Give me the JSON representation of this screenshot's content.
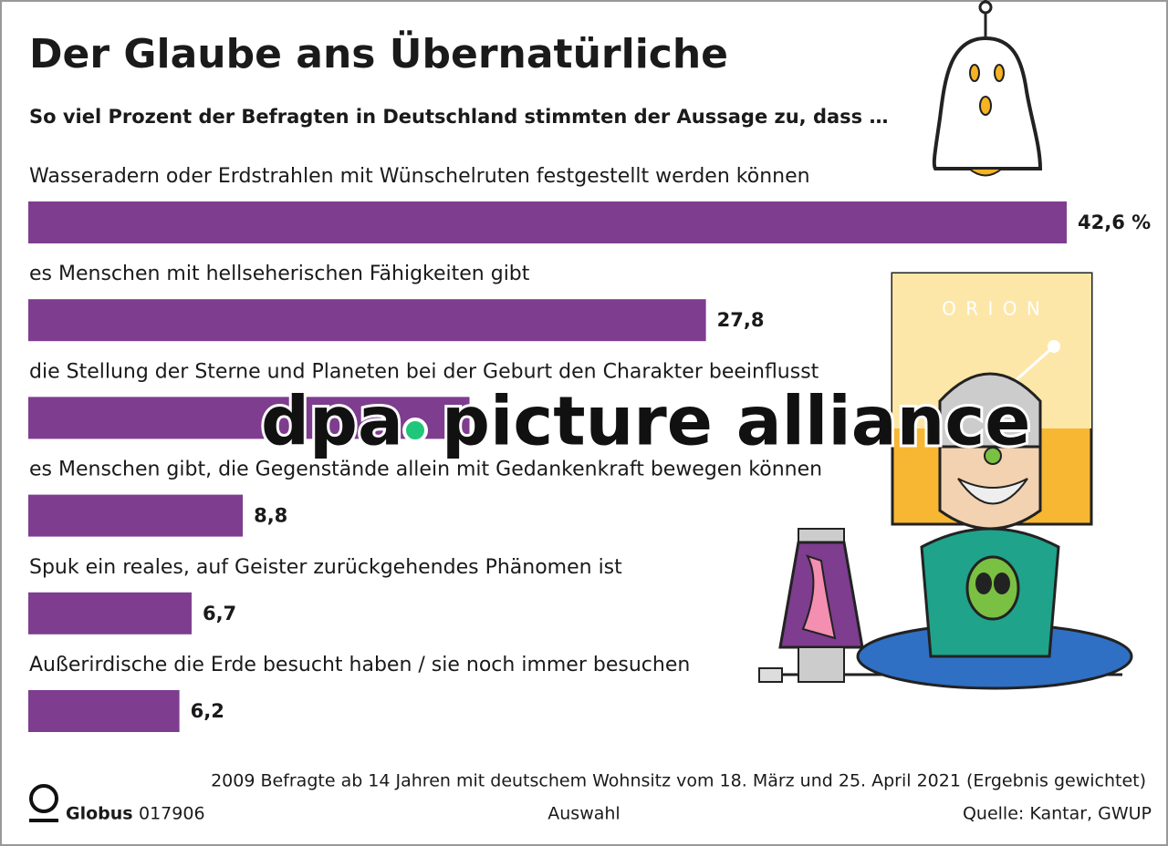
{
  "chart_data": {
    "type": "bar",
    "orientation": "horizontal",
    "title": "Der Glaube ans Übernatürliche",
    "subtitle": "So viel Prozent der Befragten in Deutschland stimmten der Aussage zu, dass …",
    "categories": [
      "Wasseradern oder Erdstrahlen mit Wünschelruten festgestellt werden können",
      "es Menschen mit hellseherischen Fähigkeiten gibt",
      "die Stellung der Sterne und Planeten bei der Geburt den Charakter beeinflusst",
      "es Menschen gibt, die Gegenstände allein mit Gedankenkraft bewegen können",
      "Spuk ein reales, auf Geister zurückgehendes Phänomen ist",
      "Außerirdische die Erde besucht haben / sie noch immer besuchen"
    ],
    "values": [
      42.6,
      27.8,
      18.1,
      8.8,
      6.7,
      6.2
    ],
    "value_labels": [
      "42,6 %",
      "27,8",
      null,
      "8,8",
      "6,7",
      "6,2"
    ],
    "color": "#7e3d8f",
    "note": "2009 Befragte ab 14 Jahren mit deutschem Wohnsitz vom 18. März und 25. April 2021 (Ergebnis gewichtet)",
    "brand": "Globus",
    "code": "017906",
    "selection": "Auswahl",
    "source": "Quelle: Kantar, GWUP",
    "illustration_text": "O R I O N",
    "watermark": [
      "dpa",
      "picture alliance"
    ]
  }
}
